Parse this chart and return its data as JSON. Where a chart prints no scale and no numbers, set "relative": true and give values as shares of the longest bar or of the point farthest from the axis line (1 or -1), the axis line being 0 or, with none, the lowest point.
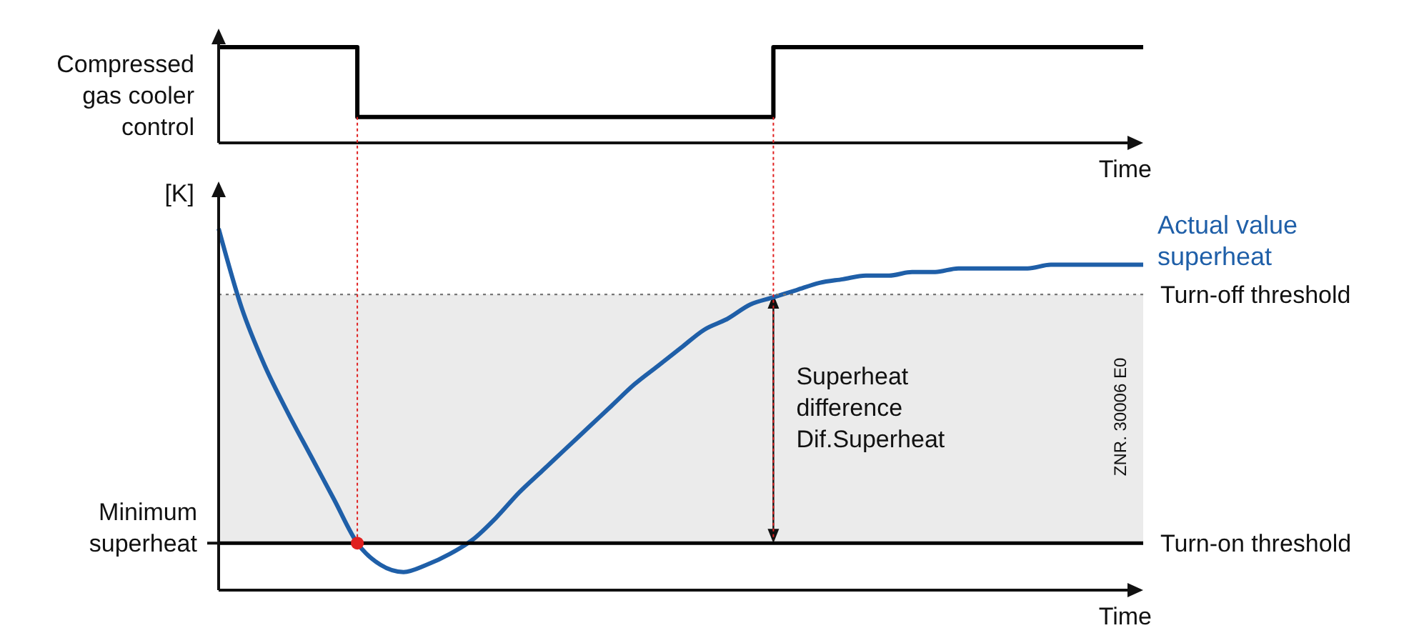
{
  "chart_data": [
    {
      "type": "step",
      "relative": true,
      "ylabel": "Compressed\ngas cooler\ncontrol",
      "xlabel": "Time",
      "categories": [
        null,
        null,
        null,
        null,
        null,
        null,
        null,
        null,
        null,
        null,
        null,
        null,
        null,
        null,
        null,
        null,
        null,
        null,
        null,
        null,
        null,
        null,
        null,
        null,
        null,
        null,
        null,
        null,
        null,
        null,
        null,
        null,
        null,
        null,
        null,
        null,
        null,
        null,
        null,
        null,
        null
      ],
      "series": [
        {
          "color": "#000000",
          "values": [
            1,
            1,
            1,
            1,
            1,
            1,
            0.27,
            0.27,
            0.27,
            0.27,
            0.27,
            0.27,
            0.27,
            0.27,
            0.27,
            0.27,
            0.27,
            0.27,
            0.27,
            0.27,
            0.27,
            0.27,
            0.27,
            0.27,
            1,
            1,
            1,
            1,
            1,
            1,
            1,
            1,
            1,
            1,
            1,
            1,
            1,
            1,
            1,
            1,
            1
          ]
        }
      ]
    },
    {
      "type": "line",
      "relative": true,
      "ylabel": "[K]",
      "xlabel": "Time",
      "categories": [
        null,
        null,
        null,
        null,
        null,
        null,
        null,
        null,
        null,
        null,
        null,
        null,
        null,
        null,
        null,
        null,
        null,
        null,
        null,
        null,
        null,
        null,
        null,
        null,
        null,
        null,
        null,
        null,
        null,
        null,
        null,
        null,
        null,
        null,
        null,
        null,
        null,
        null,
        null,
        null,
        null
      ],
      "series": [
        {
          "name": "Actual value\nsuperheat",
          "color": "#1f5fa8",
          "values": [
            1,
            0.78,
            0.62,
            0.49,
            0.37,
            0.25,
            0.13,
            0.07,
            0.05,
            0.07,
            0.1,
            0.14,
            0.2,
            0.27,
            0.33,
            0.39,
            0.45,
            0.51,
            0.57,
            0.62,
            0.67,
            0.72,
            0.75,
            0.79,
            0.81,
            0.83,
            0.85,
            0.86,
            0.87,
            0.87,
            0.88,
            0.88,
            0.89,
            0.89,
            0.89,
            0.89,
            0.9,
            0.9,
            0.9,
            0.9,
            0.9
          ]
        },
        {
          "type": "scatter",
          "marker": "circle",
          "color": "#e02020",
          "values": [
            null,
            null,
            null,
            null,
            null,
            null,
            0.13,
            null,
            null,
            null,
            null,
            null,
            null,
            null,
            null,
            null,
            null,
            null,
            null,
            null,
            null,
            null,
            null,
            null,
            null,
            null,
            null,
            null,
            null,
            null,
            null,
            null,
            null,
            null,
            null,
            null,
            null,
            null,
            null,
            null,
            null
          ]
        }
      ],
      "bands": [
        {
          "axis": "y",
          "from": 0.13,
          "to": 0.818,
          "color": "#ebebeb"
        }
      ],
      "ref_lines": [
        {
          "axis": "y",
          "value": 0.818,
          "label": "Turn-off threshold",
          "color": "#777777",
          "line_style": "dotted"
        },
        {
          "axis": "y",
          "value": 0.13,
          "label": "Turn-on threshold",
          "color": "#000000",
          "line_style": "solid"
        }
      ],
      "annotations": [
        "Minimum\nsuperheat",
        "Superheat\ndifference\nDif.Superheat",
        "ZNR. 30006 E0"
      ]
    }
  ]
}
